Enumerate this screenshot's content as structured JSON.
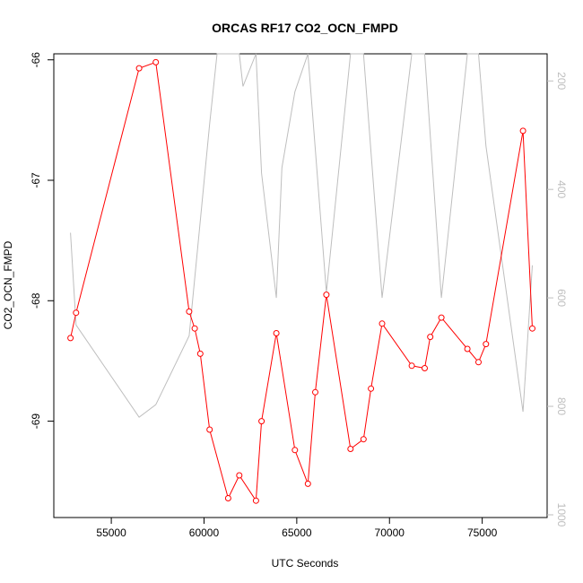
{
  "chart_data": {
    "type": "line",
    "title": "ORCAS RF17 CO2_OCN_FMPD",
    "xlabel": "UTC Seconds",
    "ylabel": "CO2_OCN_FMPD",
    "xlim": [
      51900,
      78500
    ],
    "ylim": [
      -69.8,
      -65.95
    ],
    "y2lim": [
      1005,
      150
    ],
    "x_ticks": [
      55000,
      60000,
      65000,
      70000,
      75000
    ],
    "x_tick_labels": [
      "55000",
      "60000",
      "65000",
      "70000",
      "75000"
    ],
    "y_ticks": [
      -66,
      -67,
      -68,
      -69
    ],
    "y_tick_labels": [
      "-66",
      "-67",
      "-68",
      "-69"
    ],
    "y2_ticks": [
      200,
      400,
      600,
      800,
      1000
    ],
    "y2_tick_labels": [
      "200",
      "400",
      "600",
      "800",
      "1000"
    ],
    "colors": {
      "primary": "#ff0000",
      "secondary": "#bebebe"
    },
    "series": [
      {
        "axis": "left",
        "color": "#ff0000",
        "markers": "open-circle",
        "x": [
          52800,
          53100,
          56500,
          57400,
          59200,
          59500,
          59800,
          60300,
          61300,
          61900,
          62800,
          63100,
          63900,
          64900,
          65600,
          66000,
          66600,
          67900,
          68600,
          69000,
          69600,
          71200,
          71900,
          72200,
          72800,
          74200,
          74800,
          75200,
          77200,
          77700
        ],
        "y": [
          -68.31,
          -68.1,
          -66.07,
          -66.02,
          -68.09,
          -68.23,
          -68.44,
          -69.07,
          -69.64,
          -69.45,
          -69.66,
          -69.0,
          -68.27,
          -69.24,
          -69.52,
          -68.76,
          -67.95,
          -69.23,
          -69.15,
          -68.73,
          -68.19,
          -68.54,
          -68.56,
          -68.3,
          -68.14,
          -68.4,
          -68.51,
          -68.36,
          -66.59,
          -68.23
        ]
      },
      {
        "axis": "right",
        "color": "#bebebe",
        "markers": "none",
        "x": [
          52800,
          53100,
          56500,
          57400,
          59200,
          60300,
          60700,
          61900,
          62100,
          62800,
          63100,
          63900,
          64200,
          64900,
          65600,
          66600,
          67900,
          68600,
          69600,
          71200,
          71900,
          72800,
          74200,
          74800,
          75200,
          77200,
          77700
        ],
        "y": [
          480,
          650,
          820,
          797,
          670,
          280,
          140,
          140,
          210,
          140,
          370,
          600,
          360,
          220,
          140,
          590,
          140,
          140,
          600,
          140,
          140,
          600,
          140,
          140,
          320,
          810,
          540
        ]
      }
    ]
  }
}
